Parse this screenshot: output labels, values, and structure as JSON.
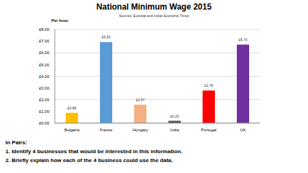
{
  "chart_data": {
    "type": "bar",
    "title": "National Minimum Wage 2015",
    "subtitle": "Sources: Eurostat and Indian Economic Times",
    "y_label": "Per hour",
    "categories": [
      "Bulgaria",
      "France",
      "Hungary",
      "India",
      "Portugal",
      "UK"
    ],
    "values": [
      0.88,
      6.92,
      1.57,
      0.2,
      2.78,
      6.7
    ],
    "value_labels": [
      "£0,88",
      "£6,92",
      "£1,57",
      "£0,20",
      "£2,78",
      "£6,70"
    ],
    "colors": [
      "#ffc000",
      "#5b9bd5",
      "#f4b183",
      "#595959",
      "#ff0000",
      "#7030a0"
    ],
    "ylim": [
      0,
      8
    ],
    "yticks": [
      {
        "value": 0,
        "label": "£0,00"
      },
      {
        "value": 1,
        "label": "£1,00"
      },
      {
        "value": 2,
        "label": "£2,00"
      },
      {
        "value": 3,
        "label": "£3,00"
      },
      {
        "value": 4,
        "label": "£4,00"
      },
      {
        "value": 5,
        "label": "£5,00"
      },
      {
        "value": 6,
        "label": "£6,00"
      },
      {
        "value": 7,
        "label": "£7,00"
      },
      {
        "value": 8,
        "label": "£8,00"
      }
    ],
    "grid": true,
    "data_labels": true,
    "annotations": [
      "In Pairs:",
      "1. Identify 4 businesses that would be interested in this information.",
      "2. Briefly explain how each of the 4 business could use the data."
    ]
  }
}
